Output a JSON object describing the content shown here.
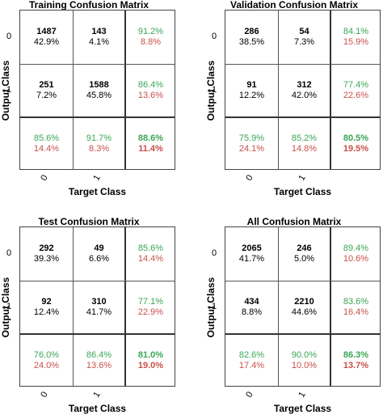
{
  "chart_data": [
    {
      "type": "table",
      "title": "Training Confusion Matrix",
      "xlabel": "Target Class",
      "ylabel": "Output Class",
      "x_tick_labels": [
        "0",
        "1"
      ],
      "y_tick_labels": [
        "0",
        "1"
      ],
      "cells": [
        [
          {
            "count": "1487",
            "percent": "42.9%"
          },
          {
            "count": "143",
            "percent": "4.1%"
          }
        ],
        [
          {
            "count": "251",
            "percent": "7.2%"
          },
          {
            "count": "1588",
            "percent": "45.8%"
          }
        ]
      ],
      "row_summary": [
        {
          "correct": "91.2%",
          "error": "8.8%"
        },
        {
          "correct": "86.4%",
          "error": "13.6%"
        }
      ],
      "column_summary": [
        {
          "correct": "85.6%",
          "error": "14.4%"
        },
        {
          "correct": "91.7%",
          "error": "8.3%"
        }
      ],
      "overall": {
        "correct": "88.6%",
        "error": "11.4%"
      }
    },
    {
      "type": "table",
      "title": "Validation Confusion Matrix",
      "xlabel": "Target Class",
      "ylabel": "Output Class",
      "x_tick_labels": [
        "0",
        "1"
      ],
      "y_tick_labels": [
        "0",
        "1"
      ],
      "cells": [
        [
          {
            "count": "286",
            "percent": "38.5%"
          },
          {
            "count": "54",
            "percent": "7.3%"
          }
        ],
        [
          {
            "count": "91",
            "percent": "12.2%"
          },
          {
            "count": "312",
            "percent": "42.0%"
          }
        ]
      ],
      "row_summary": [
        {
          "correct": "84.1%",
          "error": "15.9%"
        },
        {
          "correct": "77.4%",
          "error": "22.6%"
        }
      ],
      "column_summary": [
        {
          "correct": "75.9%",
          "error": "24.1%"
        },
        {
          "correct": "85.2%",
          "error": "14.8%"
        }
      ],
      "overall": {
        "correct": "80.5%",
        "error": "19.5%"
      }
    },
    {
      "type": "table",
      "title": "Test Confusion Matrix",
      "xlabel": "Target Class",
      "ylabel": "Output Class",
      "x_tick_labels": [
        "0",
        "1"
      ],
      "y_tick_labels": [
        "0",
        "1"
      ],
      "cells": [
        [
          {
            "count": "292",
            "percent": "39.3%"
          },
          {
            "count": "49",
            "percent": "6.6%"
          }
        ],
        [
          {
            "count": "92",
            "percent": "12.4%"
          },
          {
            "count": "310",
            "percent": "41.7%"
          }
        ]
      ],
      "row_summary": [
        {
          "correct": "85.6%",
          "error": "14.4%"
        },
        {
          "correct": "77.1%",
          "error": "22.9%"
        }
      ],
      "column_summary": [
        {
          "correct": "76.0%",
          "error": "24.0%"
        },
        {
          "correct": "86.4%",
          "error": "13.6%"
        }
      ],
      "overall": {
        "correct": "81.0%",
        "error": "19.0%"
      }
    },
    {
      "type": "table",
      "title": "All Confusion Matrix",
      "xlabel": "Target Class",
      "ylabel": "Output Class",
      "x_tick_labels": [
        "0",
        "1"
      ],
      "y_tick_labels": [
        "0",
        "1"
      ],
      "cells": [
        [
          {
            "count": "2065",
            "percent": "41.7%"
          },
          {
            "count": "246",
            "percent": "5.0%"
          }
        ],
        [
          {
            "count": "434",
            "percent": "8.8%"
          },
          {
            "count": "2210",
            "percent": "44.6%"
          }
        ]
      ],
      "row_summary": [
        {
          "correct": "89.4%",
          "error": "10.6%"
        },
        {
          "correct": "83.6%",
          "error": "16.4%"
        }
      ],
      "column_summary": [
        {
          "correct": "82.6%",
          "error": "17.4%"
        },
        {
          "correct": "90.0%",
          "error": "10.0%"
        }
      ],
      "overall": {
        "correct": "86.3%",
        "error": "13.7%"
      }
    }
  ],
  "colors": {
    "correct": "#3aa655",
    "error": "#c8504a",
    "grid": "#555555"
  }
}
